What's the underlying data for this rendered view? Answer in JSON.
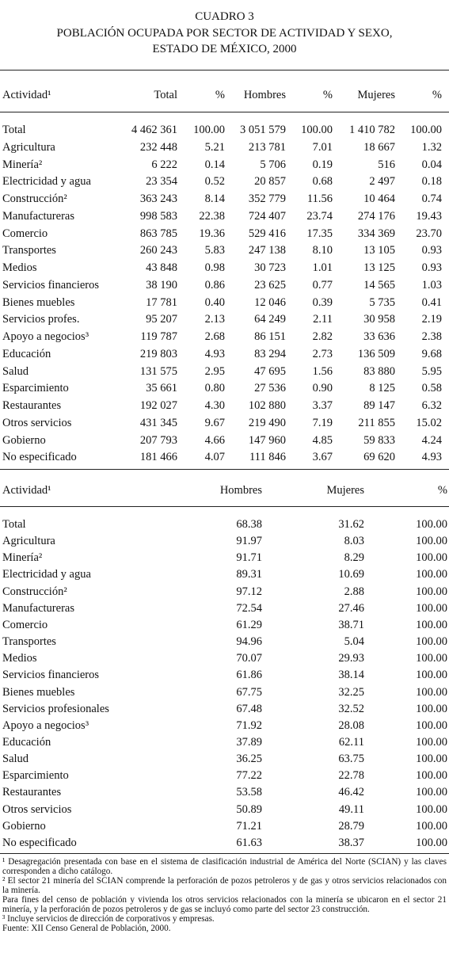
{
  "header": {
    "lines": [
      "CUADRO 3",
      "POBLACIÓN OCUPADA POR  SECTOR DE ACTIVIDAD Y SEXO,",
      "ESTADO DE MÉXICO, 2000"
    ]
  },
  "table1": {
    "columns": [
      "Actividad¹",
      "Total",
      "%",
      "Hombres",
      "%",
      "Mujeres",
      "%"
    ],
    "rows": [
      [
        "Total",
        "4 462 361",
        "100.00",
        "3 051 579",
        "100.00",
        "1 410 782",
        "100.00"
      ],
      [
        "Agricultura",
        "232 448",
        "5.21",
        "213 781",
        "7.01",
        "18 667",
        "1.32"
      ],
      [
        "Minería²",
        "6 222",
        "0.14",
        "5 706",
        "0.19",
        "516",
        "0.04"
      ],
      [
        "Electricidad y agua",
        "23 354",
        "0.52",
        "20 857",
        "0.68",
        "2 497",
        "0.18"
      ],
      [
        "Construcción²",
        "363 243",
        "8.14",
        "352 779",
        "11.56",
        "10 464",
        "0.74"
      ],
      [
        "Manufactureras",
        "998 583",
        "22.38",
        "724 407",
        "23.74",
        "274 176",
        "19.43"
      ],
      [
        "Comercio",
        "863 785",
        "19.36",
        "529 416",
        "17.35",
        "334 369",
        "23.70"
      ],
      [
        "Transportes",
        "260 243",
        "5.83",
        "247 138",
        "8.10",
        "13 105",
        "0.93"
      ],
      [
        "Medios",
        "43 848",
        "0.98",
        "30 723",
        "1.01",
        "13 125",
        "0.93"
      ],
      [
        "Servicios financieros",
        "38 190",
        "0.86",
        "23 625",
        "0.77",
        "14 565",
        "1.03"
      ],
      [
        "Bienes muebles",
        "17 781",
        "0.40",
        "12 046",
        "0.39",
        "5 735",
        "0.41"
      ],
      [
        "Servicios profes.",
        "95 207",
        "2.13",
        "64 249",
        "2.11",
        "30 958",
        "2.19"
      ],
      [
        "Apoyo a negocios³",
        "119 787",
        "2.68",
        "86 151",
        "2.82",
        "33 636",
        "2.38"
      ],
      [
        "Educación",
        "219 803",
        "4.93",
        "83 294",
        "2.73",
        "136 509",
        "9.68"
      ],
      [
        "Salud",
        "131 575",
        "2.95",
        "47 695",
        "1.56",
        "83 880",
        "5.95"
      ],
      [
        "Esparcimiento",
        "35 661",
        "0.80",
        "27 536",
        "0.90",
        "8 125",
        "0.58"
      ],
      [
        "Restaurantes",
        "192 027",
        "4.30",
        "102 880",
        "3.37",
        "89 147",
        "6.32"
      ],
      [
        "Otros servicios",
        "431 345",
        "9.67",
        "219 490",
        "7.19",
        "211 855",
        "15.02"
      ],
      [
        "Gobierno",
        "207 793",
        "4.66",
        "147 960",
        "4.85",
        "59 833",
        "4.24"
      ],
      [
        "No especificado",
        "181 466",
        "4.07",
        "111 846",
        "3.67",
        "69 620",
        "4.93"
      ]
    ]
  },
  "table2": {
    "columns": [
      "Actividad¹",
      "Hombres",
      "Mujeres",
      "%"
    ],
    "rows": [
      [
        "Total",
        "68.38",
        "31.62",
        "100.00"
      ],
      [
        "Agricultura",
        "91.97",
        "8.03",
        "100.00"
      ],
      [
        "Minería²",
        "91.71",
        "8.29",
        "100.00"
      ],
      [
        "Electricidad y agua",
        "89.31",
        "10.69",
        "100.00"
      ],
      [
        "Construcción²",
        "97.12",
        "2.88",
        "100.00"
      ],
      [
        "Manufactureras",
        "72.54",
        "27.46",
        "100.00"
      ],
      [
        "Comercio",
        "61.29",
        "38.71",
        "100.00"
      ],
      [
        "Transportes",
        "94.96",
        "5.04",
        "100.00"
      ],
      [
        "Medios",
        "70.07",
        "29.93",
        "100.00"
      ],
      [
        "Servicios financieros",
        "61.86",
        "38.14",
        "100.00"
      ],
      [
        "Bienes muebles",
        "67.75",
        "32.25",
        "100.00"
      ],
      [
        "Servicios profesionales",
        "67.48",
        "32.52",
        "100.00"
      ],
      [
        "Apoyo a negocios³",
        "71.92",
        "28.08",
        "100.00"
      ],
      [
        "Educación",
        "37.89",
        "62.11",
        "100.00"
      ],
      [
        "Salud",
        "36.25",
        "63.75",
        "100.00"
      ],
      [
        "Esparcimiento",
        "77.22",
        "22.78",
        "100.00"
      ],
      [
        "Restaurantes",
        "53.58",
        "46.42",
        "100.00"
      ],
      [
        "Otros servicios",
        "50.89",
        "49.11",
        "100.00"
      ],
      [
        "Gobierno",
        "71.21",
        "28.79",
        "100.00"
      ],
      [
        "No especificado",
        "61.63",
        "38.37",
        "100.00"
      ]
    ]
  },
  "footnotes": [
    "¹ Desagregación presentada con base en el sistema de clasificación industrial de América del Norte (SCIAN) y las claves corresponden a dicho catálogo.",
    "² El sector 21 minería del SCIAN comprende la perforación de pozos petroleros y de gas y otros servicios relacionados con la minería.",
    "Para fines del censo de población y vivienda los otros servicios relacionados con la minería se ubicaron en el sector 21 minería, y la perforación de pozos petroleros y de gas se incluyó como parte del sector 23 construcción.",
    "³ Incluye servicios de dirección de corporativos y empresas.",
    "Fuente: XII Censo General de Población, 2000."
  ]
}
